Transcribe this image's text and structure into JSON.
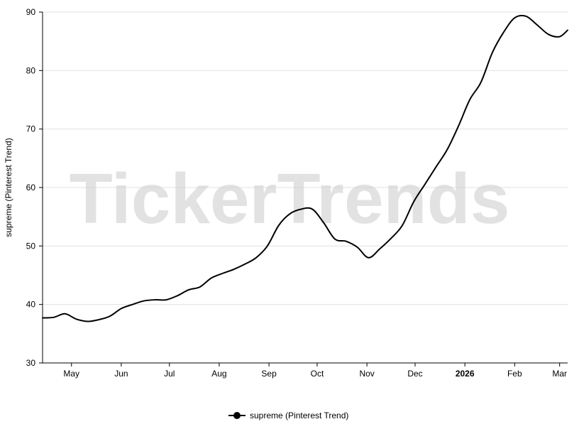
{
  "watermark": "TickerTrends",
  "chart_data": {
    "type": "line",
    "xlabel": "",
    "ylabel": "supreme  (Pinterest Trend)",
    "ylim": [
      30,
      90
    ],
    "yticks": [
      30,
      40,
      50,
      60,
      70,
      80,
      90
    ],
    "grid": true,
    "legend_placement": "bottom-center",
    "x_ticks": [
      {
        "date": "2025-05-01",
        "label": "May",
        "bold": false
      },
      {
        "date": "2025-06-01",
        "label": "Jun",
        "bold": false
      },
      {
        "date": "2025-07-01",
        "label": "Jul",
        "bold": false
      },
      {
        "date": "2025-08-01",
        "label": "Aug",
        "bold": false
      },
      {
        "date": "2025-09-01",
        "label": "Sep",
        "bold": false
      },
      {
        "date": "2025-10-01",
        "label": "Oct",
        "bold": false
      },
      {
        "date": "2025-11-01",
        "label": "Nov",
        "bold": false
      },
      {
        "date": "2025-12-01",
        "label": "Dec",
        "bold": false
      },
      {
        "date": "2026-01-01",
        "label": "2026",
        "bold": true
      },
      {
        "date": "2026-02-01",
        "label": "Feb",
        "bold": false
      },
      {
        "date": "2026-03-01",
        "label": "Mar",
        "bold": false
      }
    ],
    "x_range": [
      "2025-04-13",
      "2026-03-06"
    ],
    "series": [
      {
        "name": "supreme  (Pinterest Trend)",
        "color": "#000000",
        "points": [
          [
            "2025-04-13",
            37.7
          ],
          [
            "2025-04-20",
            37.8
          ],
          [
            "2025-04-27",
            38.4
          ],
          [
            "2025-05-04",
            37.5
          ],
          [
            "2025-05-11",
            37.1
          ],
          [
            "2025-05-18",
            37.4
          ],
          [
            "2025-05-25",
            38.0
          ],
          [
            "2025-06-01",
            39.3
          ],
          [
            "2025-06-08",
            40.0
          ],
          [
            "2025-06-15",
            40.6
          ],
          [
            "2025-06-22",
            40.8
          ],
          [
            "2025-06-29",
            40.8
          ],
          [
            "2025-07-06",
            41.5
          ],
          [
            "2025-07-13",
            42.5
          ],
          [
            "2025-07-20",
            43.0
          ],
          [
            "2025-07-27",
            44.5
          ],
          [
            "2025-08-03",
            45.3
          ],
          [
            "2025-08-10",
            46.0
          ],
          [
            "2025-08-17",
            46.9
          ],
          [
            "2025-08-24",
            48.0
          ],
          [
            "2025-08-31",
            50.0
          ],
          [
            "2025-09-07",
            53.5
          ],
          [
            "2025-09-14",
            55.5
          ],
          [
            "2025-09-21",
            56.3
          ],
          [
            "2025-09-28",
            56.3
          ],
          [
            "2025-10-05",
            54.0
          ],
          [
            "2025-10-12",
            51.2
          ],
          [
            "2025-10-19",
            50.8
          ],
          [
            "2025-10-26",
            49.8
          ],
          [
            "2025-11-02",
            48.0
          ],
          [
            "2025-11-09",
            49.5
          ],
          [
            "2025-11-16",
            51.3
          ],
          [
            "2025-11-23",
            53.5
          ],
          [
            "2025-11-30",
            57.5
          ],
          [
            "2025-12-07",
            60.5
          ],
          [
            "2025-12-14",
            63.5
          ],
          [
            "2025-12-21",
            66.5
          ],
          [
            "2025-12-28",
            70.5
          ],
          [
            "2026-01-04",
            75.0
          ],
          [
            "2026-01-11",
            78.0
          ],
          [
            "2026-01-18",
            83.0
          ],
          [
            "2026-01-25",
            86.5
          ],
          [
            "2026-02-01",
            89.0
          ],
          [
            "2026-02-08",
            89.3
          ],
          [
            "2026-02-15",
            87.8
          ],
          [
            "2026-02-22",
            86.2
          ],
          [
            "2026-03-01",
            85.8
          ],
          [
            "2026-03-06",
            86.9
          ]
        ]
      }
    ]
  },
  "legend": {
    "label": "supreme  (Pinterest Trend)"
  }
}
